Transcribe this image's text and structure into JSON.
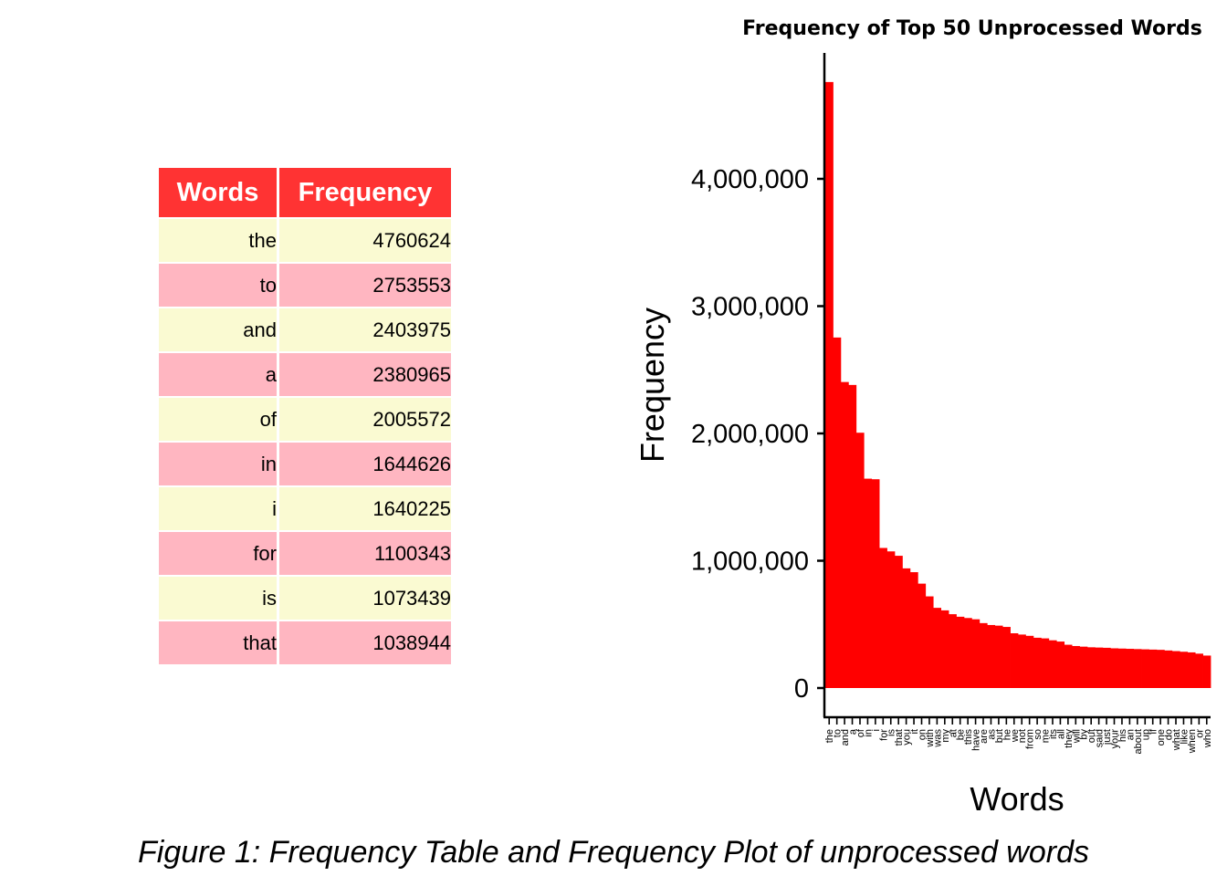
{
  "table": {
    "headers": [
      "Words",
      "Frequency"
    ],
    "rows": [
      {
        "word": "the",
        "freq": "4760624"
      },
      {
        "word": "to",
        "freq": "2753553"
      },
      {
        "word": "and",
        "freq": "2403975"
      },
      {
        "word": "a",
        "freq": "2380965"
      },
      {
        "word": "of",
        "freq": "2005572"
      },
      {
        "word": "in",
        "freq": "1644626"
      },
      {
        "word": "i",
        "freq": "1640225"
      },
      {
        "word": "for",
        "freq": "1100343"
      },
      {
        "word": "is",
        "freq": "1073439"
      },
      {
        "word": "that",
        "freq": "1038944"
      }
    ],
    "header_color": "#ff3333",
    "row_colors": [
      "#fafad2",
      "#ffb6c1"
    ]
  },
  "chart_data": {
    "type": "bar",
    "title": "Frequency of Top 50 Unprocessed Words",
    "xlabel": "Words",
    "ylabel": "Frequency",
    "ylim": [
      0,
      4900000
    ],
    "yticks": [
      0,
      1000000,
      2000000,
      3000000,
      4000000
    ],
    "ytick_labels": [
      "0",
      "1,000,000",
      "2,000,000",
      "3,000,000",
      "4,000,000"
    ],
    "grid": false,
    "bar_color": "#ff0000",
    "categories": [
      "the",
      "to",
      "and",
      "a",
      "of",
      "in",
      "i",
      "for",
      "is",
      "that",
      "you",
      "it",
      "on",
      "with",
      "was",
      "my",
      "at",
      "be",
      "this",
      "have",
      "are",
      "as",
      "but",
      "he",
      "we",
      "not",
      "from",
      "so",
      "me",
      "its",
      "all",
      "they",
      "will",
      "by",
      "out",
      "said",
      "just",
      "your",
      "his",
      "an",
      "about",
      "up",
      "if",
      "one",
      "do",
      "what",
      "like",
      "when",
      "or",
      "who"
    ],
    "values": [
      4760624,
      2753553,
      2403975,
      2380965,
      2005572,
      1644626,
      1640225,
      1100343,
      1073439,
      1038944,
      940000,
      910000,
      820000,
      720000,
      630000,
      610000,
      580000,
      560000,
      550000,
      540000,
      510000,
      495000,
      490000,
      480000,
      430000,
      420000,
      410000,
      395000,
      390000,
      375000,
      365000,
      340000,
      330000,
      325000,
      320000,
      318000,
      316000,
      312000,
      310000,
      308000,
      306000,
      304000,
      302000,
      300000,
      295000,
      290000,
      285000,
      280000,
      270000,
      255000
    ]
  },
  "caption": "Figure 1: Frequency Table and Frequency Plot of unprocessed words"
}
